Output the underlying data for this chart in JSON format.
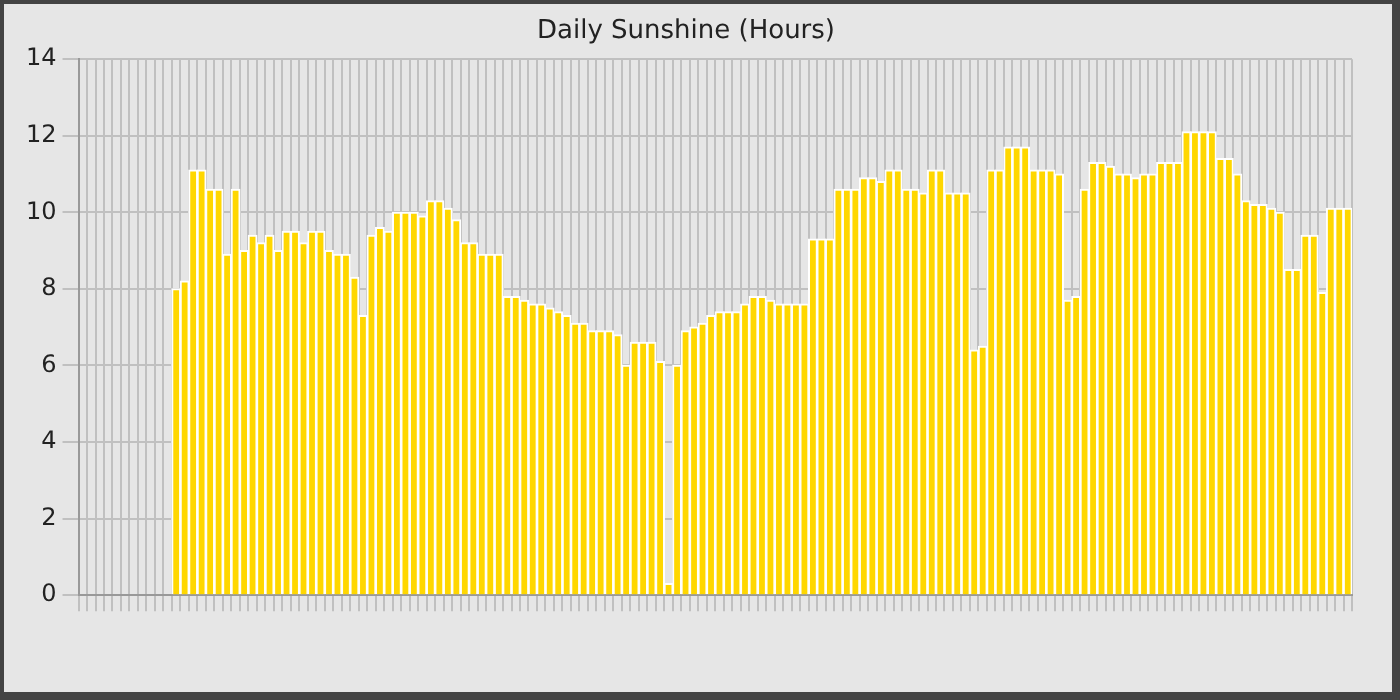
{
  "chart_data": {
    "type": "bar",
    "title": "Daily Sunshine (Hours)",
    "categories": [
      null,
      null,
      null,
      null,
      null,
      null,
      null,
      null,
      null,
      null,
      null,
      null,
      null,
      null,
      null,
      null,
      null,
      null,
      null,
      null,
      null,
      null,
      null,
      null,
      null,
      null,
      null,
      null,
      null,
      null,
      null,
      null,
      null,
      null,
      null,
      null,
      null,
      null,
      null,
      null,
      null,
      null,
      null,
      null,
      null,
      null,
      null,
      null,
      null,
      null,
      null,
      null,
      null,
      null,
      null,
      null,
      null,
      null,
      null,
      null,
      null,
      null,
      null,
      null,
      null,
      null,
      null,
      null,
      null,
      null,
      null,
      null,
      null,
      null,
      null,
      null,
      null,
      null,
      null,
      null,
      null,
      null,
      null,
      null,
      null,
      null,
      null,
      null,
      null,
      null,
      null,
      null,
      null,
      null,
      null,
      null,
      null,
      null,
      null,
      null,
      null,
      null,
      null,
      null,
      null,
      null,
      null,
      null,
      null,
      null,
      null,
      null,
      null,
      null,
      null,
      null,
      null,
      null,
      null,
      null,
      null,
      null,
      null,
      null,
      null,
      null,
      null,
      null,
      null,
      null,
      null,
      null,
      null,
      null,
      null,
      null,
      null,
      null,
      null,
      null,
      null,
      null,
      null,
      null,
      null,
      null,
      null,
      null,
      null,
      null
    ],
    "values": [
      null,
      null,
      null,
      null,
      null,
      null,
      null,
      null,
      null,
      null,
      null,
      8.0,
      8.2,
      11.1,
      11.1,
      10.6,
      10.6,
      8.9,
      10.6,
      9.0,
      9.4,
      9.2,
      9.4,
      9.0,
      9.5,
      9.5,
      9.2,
      9.5,
      9.5,
      9.0,
      8.9,
      8.9,
      8.3,
      7.3,
      9.4,
      9.6,
      9.5,
      10.0,
      10.0,
      10.0,
      9.9,
      10.3,
      10.3,
      10.1,
      9.8,
      9.2,
      9.2,
      8.9,
      8.9,
      8.9,
      7.8,
      7.8,
      7.7,
      7.6,
      7.6,
      7.5,
      7.4,
      7.3,
      7.1,
      7.1,
      6.9,
      6.9,
      6.9,
      6.8,
      6.0,
      6.6,
      6.6,
      6.6,
      6.1,
      0.3,
      6.0,
      6.9,
      7.0,
      7.1,
      7.3,
      7.4,
      7.4,
      7.4,
      7.6,
      7.8,
      7.8,
      7.7,
      7.6,
      7.6,
      7.6,
      7.6,
      9.3,
      9.3,
      9.3,
      10.6,
      10.6,
      10.6,
      10.9,
      10.9,
      10.8,
      11.1,
      11.1,
      10.6,
      10.6,
      10.5,
      11.1,
      11.1,
      10.5,
      10.5,
      10.5,
      6.4,
      6.5,
      11.1,
      11.1,
      11.7,
      11.7,
      11.7,
      11.1,
      11.1,
      11.1,
      11.0,
      7.7,
      7.8,
      10.6,
      11.3,
      11.3,
      11.2,
      11.0,
      11.0,
      10.9,
      11.0,
      11.0,
      11.3,
      11.3,
      11.3,
      12.1,
      12.1,
      12.1,
      12.1,
      11.4,
      11.4,
      11.0,
      10.3,
      10.2,
      10.2,
      10.1,
      10.0,
      8.5,
      8.5,
      9.4,
      9.4,
      7.9,
      10.1,
      10.1,
      10.1
    ],
    "color": "#ffd700",
    "ylim": [
      0,
      14
    ],
    "yticks": [
      0,
      2,
      4,
      6,
      8,
      10,
      12,
      14
    ],
    "grid": true
  }
}
